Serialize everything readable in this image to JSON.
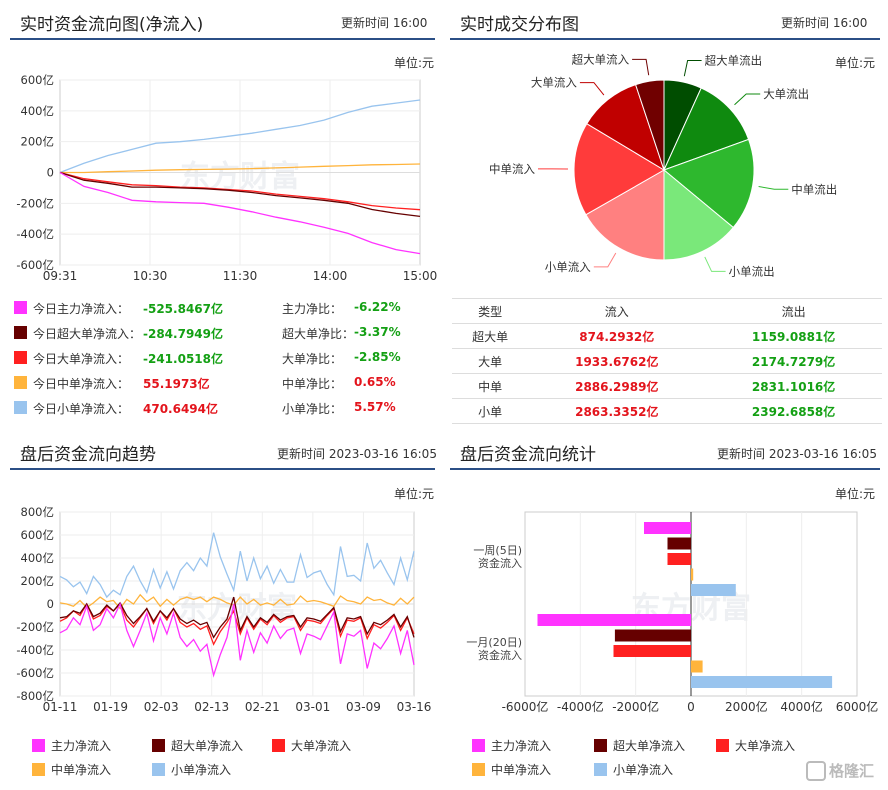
{
  "panels": {
    "realtime_flow": {
      "title": "实时资金流向图(净流入)",
      "update": "更新时间 16:00",
      "unit": "单位:元"
    },
    "distribution": {
      "title": "实时成交分布图",
      "update": "更新时间 16:00",
      "unit": "单位:元"
    },
    "trend": {
      "title": "盘后资金流向趋势",
      "update": "更新时间 2023-03-16 16:05",
      "unit": "单位:元"
    },
    "stats": {
      "title": "盘后资金流向统计",
      "update": "更新时间 2023-03-16 16:05",
      "unit": "单位:元"
    }
  },
  "watermark": "东方财富",
  "corner_logo": "格隆汇",
  "colors": {
    "main": "#ff33ff",
    "super": "#660000",
    "big": "#ff2020",
    "mid": "#ffb43c",
    "small": "#99c4ee"
  },
  "today_stats": [
    {
      "label": "今日主力净流入：",
      "value": "-525.8467亿",
      "label2": "主力净比：",
      "value2": "-6.22%",
      "color": "#ff33ff",
      "neg": true,
      "neg2": true
    },
    {
      "label": "今日超大单净流入：",
      "value": "-284.7949亿",
      "label2": "超大单净比：",
      "value2": "-3.37%",
      "color": "#660000",
      "neg": true,
      "neg2": true
    },
    {
      "label": "今日大单净流入：",
      "value": "-241.0518亿",
      "label2": "大单净比：",
      "value2": "-2.85%",
      "color": "#ff2020",
      "neg": true,
      "neg2": true
    },
    {
      "label": "今日中单净流入：",
      "value": "55.1973亿",
      "label2": "中单净比：",
      "value2": "0.65%",
      "color": "#ffb43c",
      "neg": false,
      "neg2": false
    },
    {
      "label": "今日小单净流入：",
      "value": "470.6494亿",
      "label2": "小单净比：",
      "value2": "5.57%",
      "color": "#99c4ee",
      "neg": false,
      "neg2": false
    }
  ],
  "table": {
    "headers": [
      "类型",
      "流入",
      "流出"
    ],
    "rows": [
      [
        "超大单",
        "874.2932亿",
        "1159.0881亿"
      ],
      [
        "大单",
        "1933.6762亿",
        "2174.7279亿"
      ],
      [
        "中单",
        "2886.2989亿",
        "2831.1016亿"
      ],
      [
        "小单",
        "2863.3352亿",
        "2392.6858亿"
      ]
    ]
  },
  "legend": [
    "主力净流入",
    "超大单净流入",
    "大单净流入",
    "中单净流入",
    "小单净流入"
  ],
  "chart_data": [
    {
      "type": "line",
      "title": "实时资金流向图(净流入)",
      "x_ticks": [
        "09:31",
        "10:30",
        "11:30",
        "14:00",
        "15:00"
      ],
      "y_ticks": [
        "600亿",
        "400亿",
        "200亿",
        "0",
        "-200亿",
        "-400亿",
        "-600亿"
      ],
      "ylim": [
        -600,
        600
      ],
      "series": [
        {
          "name": "小单净流入",
          "color": "#99c4ee",
          "values": [
            0,
            60,
            110,
            150,
            190,
            200,
            215,
            235,
            255,
            280,
            305,
            340,
            390,
            430,
            450,
            470
          ]
        },
        {
          "name": "中单净流入",
          "color": "#ffb43c",
          "values": [
            0,
            0,
            5,
            10,
            15,
            18,
            20,
            22,
            25,
            30,
            35,
            40,
            45,
            50,
            52,
            55
          ]
        },
        {
          "name": "大单净流入",
          "color": "#ff2020",
          "values": [
            0,
            -40,
            -60,
            -80,
            -85,
            -95,
            -100,
            -110,
            -120,
            -140,
            -155,
            -170,
            -190,
            -215,
            -230,
            -241
          ]
        },
        {
          "name": "超大单净流入",
          "color": "#660000",
          "values": [
            0,
            -50,
            -70,
            -95,
            -95,
            -100,
            -105,
            -115,
            -130,
            -150,
            -165,
            -180,
            -200,
            -240,
            -265,
            -285
          ]
        },
        {
          "name": "主力净流入",
          "color": "#ff33ff",
          "values": [
            0,
            -90,
            -130,
            -180,
            -190,
            -195,
            -200,
            -225,
            -255,
            -290,
            -320,
            -355,
            -395,
            -455,
            -500,
            -526
          ]
        }
      ]
    },
    {
      "type": "pie",
      "title": "实时成交分布图",
      "labels": [
        "超大单流出",
        "大单流出",
        "中单流出",
        "小单流出",
        "小单流入",
        "中单流入",
        "大单流入",
        "超大单流入"
      ],
      "values": [
        1159.0881,
        2174.7279,
        2831.1016,
        2392.6858,
        2863.3352,
        2886.2989,
        1933.6762,
        874.2932
      ],
      "colors": [
        "#004d00",
        "#0f8a0f",
        "#2eb82e",
        "#7ae87a",
        "#ff8080",
        "#ff3b3b",
        "#c00000",
        "#700000"
      ]
    },
    {
      "type": "line",
      "title": "盘后资金流向趋势",
      "x_ticks": [
        "01-11",
        "01-19",
        "02-03",
        "02-13",
        "02-21",
        "03-01",
        "03-09",
        "03-16"
      ],
      "y_ticks": [
        "800亿",
        "600亿",
        "400亿",
        "200亿",
        "0",
        "-200亿",
        "-400亿",
        "-600亿",
        "-800亿"
      ],
      "ylim": [
        -800,
        800
      ],
      "series": [
        {
          "name": "小单净流入",
          "color": "#99c4ee",
          "values": [
            240,
            210,
            150,
            190,
            90,
            240,
            170,
            60,
            120,
            80,
            240,
            330,
            200,
            100,
            300,
            140,
            280,
            130,
            290,
            360,
            290,
            400,
            330,
            620,
            410,
            260,
            120,
            460,
            200,
            400,
            220,
            330,
            180,
            300,
            190,
            190,
            430,
            230,
            270,
            290,
            170,
            80,
            500,
            240,
            250,
            200,
            530,
            310,
            380,
            270,
            170,
            400,
            210,
            460
          ]
        },
        {
          "name": "中单净流入",
          "color": "#ffb43c",
          "values": [
            10,
            0,
            -20,
            30,
            -30,
            10,
            60,
            20,
            30,
            -40,
            40,
            0,
            80,
            20,
            60,
            -20,
            40,
            -10,
            40,
            60,
            40,
            60,
            20,
            60,
            40,
            10,
            -10,
            60,
            0,
            40,
            -10,
            10,
            -10,
            40,
            -10,
            0,
            70,
            20,
            30,
            20,
            0,
            -20,
            70,
            30,
            20,
            0,
            60,
            30,
            40,
            10,
            -10,
            50,
            0,
            60
          ]
        },
        {
          "name": "大单净流入",
          "color": "#ff2020",
          "values": [
            -150,
            -120,
            -60,
            -100,
            0,
            -130,
            -100,
            -20,
            -60,
            0,
            -140,
            -200,
            -120,
            -40,
            -170,
            -60,
            -140,
            -40,
            -160,
            -200,
            -170,
            -220,
            -190,
            -350,
            -240,
            -160,
            -60,
            -260,
            -120,
            -220,
            -130,
            -180,
            -100,
            -160,
            -120,
            -110,
            -230,
            -140,
            -150,
            -170,
            -100,
            -40,
            -280,
            -140,
            -150,
            -120,
            -300,
            -180,
            -210,
            -160,
            -100,
            -230,
            -120,
            -260
          ]
        },
        {
          "name": "超大单净流入",
          "color": "#660000",
          "values": [
            -120,
            -110,
            -60,
            -80,
            0,
            -110,
            -80,
            -10,
            -60,
            10,
            -100,
            -170,
            -110,
            -40,
            -150,
            -60,
            -120,
            -40,
            -130,
            -170,
            -140,
            -180,
            -160,
            -290,
            -200,
            -130,
            60,
            -230,
            -110,
            -200,
            -120,
            -160,
            -90,
            -140,
            -110,
            -100,
            -200,
            -120,
            -130,
            -150,
            -90,
            -30,
            -240,
            -120,
            -130,
            -110,
            -260,
            -160,
            -180,
            -140,
            -90,
            -200,
            -110,
            -290
          ]
        },
        {
          "name": "主力净流入",
          "color": "#ff33ff",
          "values": [
            -250,
            -220,
            -120,
            -180,
            -20,
            -230,
            -180,
            -40,
            -120,
            0,
            -230,
            -370,
            -230,
            -80,
            -320,
            -120,
            -260,
            -80,
            -290,
            -370,
            -310,
            -410,
            -350,
            -620,
            -440,
            -290,
            0,
            -490,
            -230,
            -420,
            -250,
            -340,
            -190,
            -300,
            -230,
            -210,
            -430,
            -260,
            -280,
            -310,
            -190,
            -70,
            -520,
            -260,
            -280,
            -230,
            -560,
            -340,
            -390,
            -300,
            -190,
            -430,
            -230,
            -530
          ]
        }
      ]
    },
    {
      "type": "bar",
      "title": "盘后资金流向统计",
      "categories": [
        "一周(5日)资金流入",
        "一月(20日)资金流入"
      ],
      "x_ticks": [
        "-6000亿",
        "-4000亿",
        "-2000亿",
        "0",
        "2000亿",
        "4000亿",
        "6000亿"
      ],
      "xlim": [
        -6000,
        6000
      ],
      "series": [
        {
          "name": "主力净流入",
          "color": "#ff33ff",
          "values": [
            -1700,
            -5550
          ]
        },
        {
          "name": "超大单净流入",
          "color": "#660000",
          "values": [
            -850,
            -2750
          ]
        },
        {
          "name": "大单净流入",
          "color": "#ff2020",
          "values": [
            -850,
            -2800
          ]
        },
        {
          "name": "中单净流入",
          "color": "#ffb43c",
          "values": [
            80,
            420
          ]
        },
        {
          "name": "小单净流入",
          "color": "#99c4ee",
          "values": [
            1620,
            5100
          ]
        }
      ]
    }
  ]
}
